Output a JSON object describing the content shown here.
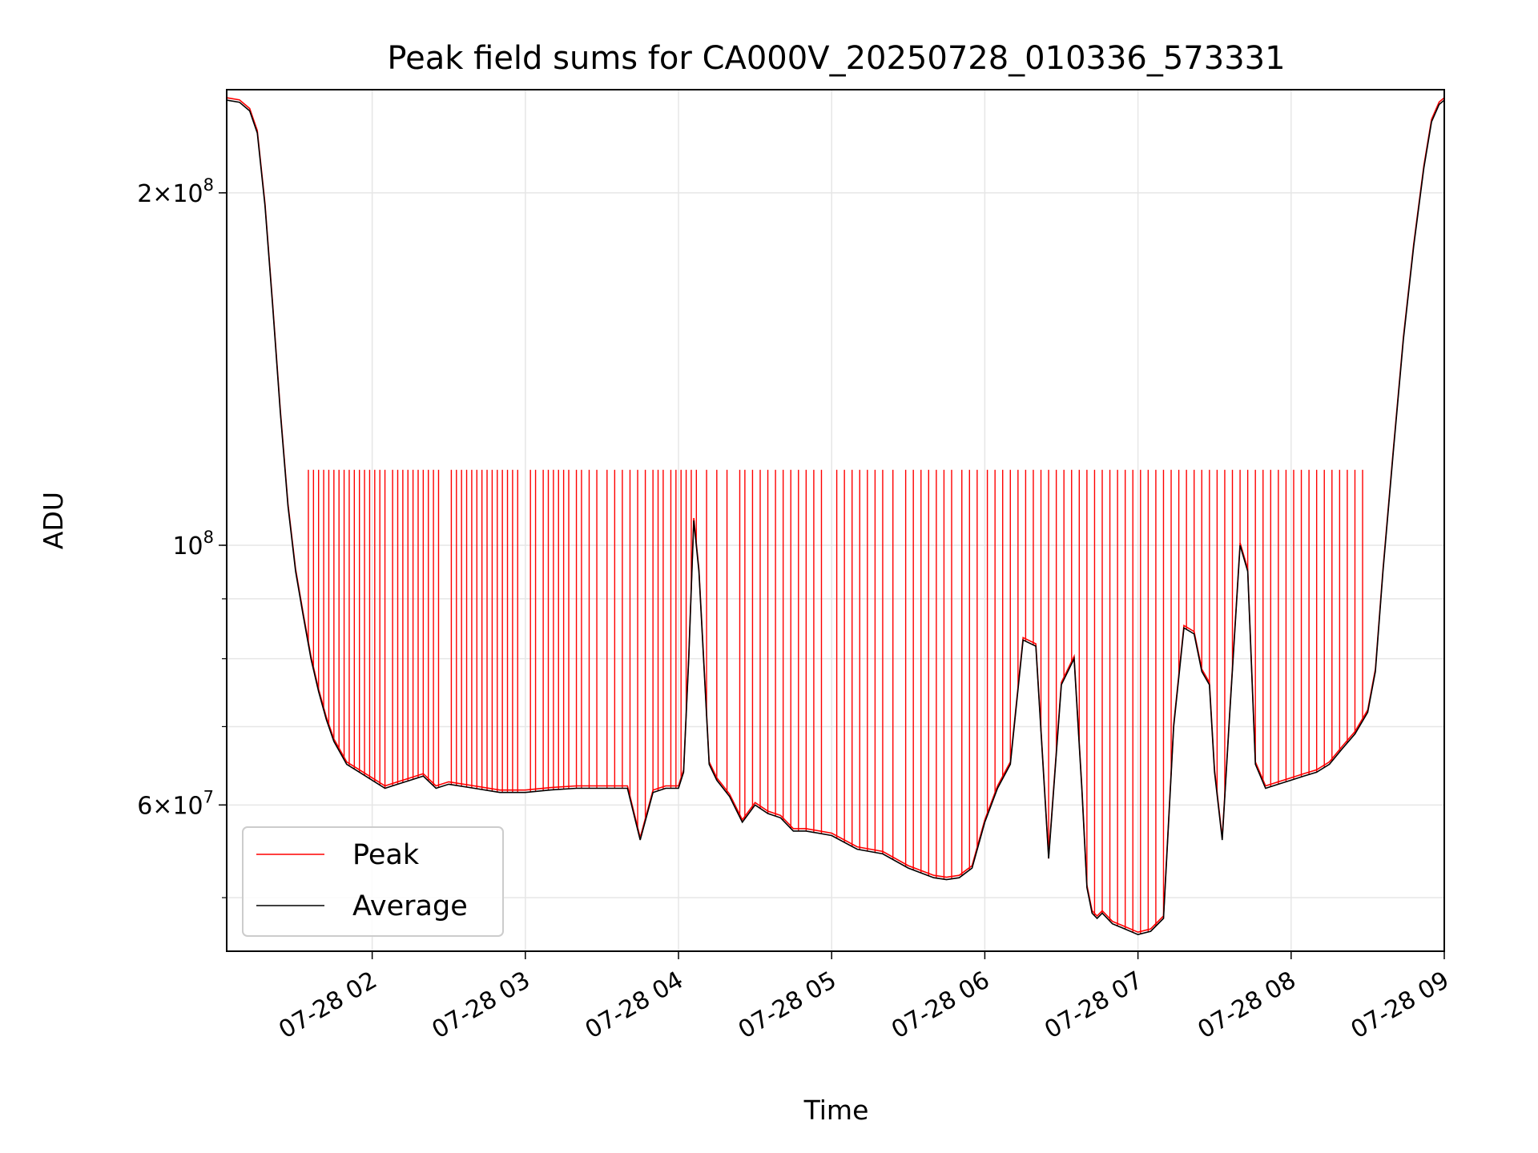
{
  "chart_data": {
    "type": "line",
    "title": "Peak field sums for CA000V_20250728_010336_573331",
    "xlabel": "Time",
    "ylabel": "ADU",
    "y_scale": "log",
    "ylim": [
      45000000,
      245000000
    ],
    "xlim": [
      "2025-07-28 01:03",
      "2025-07-28 09:00"
    ],
    "grid": true,
    "legend": "lower-left",
    "x_tick_labels": [
      "07-28 02",
      "07-28 03",
      "07-28 04",
      "07-28 05",
      "07-28 06",
      "07-28 07",
      "07-28 08",
      "07-28 09"
    ],
    "y_tick_labels": [
      {
        "value": 200000000,
        "mantissa": "2",
        "exponent": "8"
      },
      {
        "value": 100000000,
        "mantissa": "",
        "exponent": "8"
      },
      {
        "value": 60000000,
        "mantissa": "6",
        "exponent": "7"
      }
    ],
    "series": [
      {
        "name": "Peak",
        "color": "#ff0000",
        "note_peak_level": 116000000,
        "spike_times": [
          "01:35",
          "01:37",
          "01:39",
          "01:41",
          "01:43",
          "01:45",
          "01:47",
          "01:49",
          "01:51",
          "01:53",
          "01:55",
          "01:57",
          "01:59",
          "02:01",
          "02:03",
          "02:05",
          "02:08",
          "02:10",
          "02:12",
          "02:14",
          "02:16",
          "02:18",
          "02:20",
          "02:22",
          "02:24",
          "02:26",
          "02:31",
          "02:33",
          "02:35",
          "02:37",
          "02:39",
          "02:41",
          "02:43",
          "02:45",
          "02:47",
          "02:49",
          "02:51",
          "02:53",
          "02:55",
          "02:57",
          "03:02",
          "03:04",
          "03:07",
          "03:09",
          "03:11",
          "03:13",
          "03:15",
          "03:17",
          "03:20",
          "03:22",
          "03:25",
          "03:28",
          "03:32",
          "03:35",
          "03:38",
          "03:41",
          "03:44",
          "03:47",
          "03:50",
          "03:52",
          "03:54",
          "03:57",
          "03:59",
          "04:01",
          "04:03",
          "04:05",
          "04:07",
          "04:11",
          "04:15",
          "04:19",
          "04:24",
          "04:26",
          "04:29",
          "04:32",
          "04:35",
          "04:38",
          "04:41",
          "04:44",
          "04:47",
          "04:50",
          "04:53",
          "04:56",
          "05:02",
          "05:05",
          "05:08",
          "05:11",
          "05:14",
          "05:17",
          "05:20",
          "05:24",
          "05:29",
          "05:32",
          "05:35",
          "05:38",
          "05:41",
          "05:44",
          "05:47",
          "05:51",
          "05:54",
          "05:57",
          "06:01",
          "06:04",
          "06:07",
          "06:10",
          "06:13",
          "06:16",
          "06:19",
          "06:22",
          "06:25",
          "06:28",
          "06:31",
          "06:34",
          "06:37",
          "06:40",
          "06:43",
          "06:46",
          "06:49",
          "06:52",
          "06:55",
          "06:58",
          "07:01",
          "07:04",
          "07:07",
          "07:10",
          "07:13",
          "07:16",
          "07:19",
          "07:22",
          "07:25",
          "07:28",
          "07:31",
          "07:34",
          "07:37",
          "07:40",
          "07:43",
          "07:46",
          "07:49",
          "07:52",
          "07:55",
          "07:58",
          "08:01",
          "08:04",
          "08:07",
          "08:10",
          "08:13",
          "08:16",
          "08:19",
          "08:22",
          "08:25",
          "08:28"
        ]
      },
      {
        "name": "Average",
        "color": "#000000",
        "x": [
          "01:03",
          "01:08",
          "01:12",
          "01:15",
          "01:18",
          "01:21",
          "01:24",
          "01:27",
          "01:30",
          "01:33",
          "01:36",
          "01:39",
          "01:42",
          "01:45",
          "01:50",
          "01:55",
          "02:00",
          "02:05",
          "02:10",
          "02:15",
          "02:20",
          "02:25",
          "02:30",
          "02:40",
          "02:50",
          "03:00",
          "03:10",
          "03:20",
          "03:30",
          "03:40",
          "03:45",
          "03:50",
          "03:55",
          "04:00",
          "04:02",
          "04:04",
          "04:06",
          "04:08",
          "04:12",
          "04:15",
          "04:20",
          "04:25",
          "04:30",
          "04:35",
          "04:40",
          "04:45",
          "04:50",
          "05:00",
          "05:10",
          "05:20",
          "05:30",
          "05:40",
          "05:45",
          "05:50",
          "05:55",
          "06:00",
          "06:05",
          "06:10",
          "06:15",
          "06:20",
          "06:25",
          "06:30",
          "06:35",
          "06:38",
          "06:40",
          "06:42",
          "06:44",
          "06:46",
          "06:50",
          "06:55",
          "07:00",
          "07:05",
          "07:10",
          "07:14",
          "07:18",
          "07:22",
          "07:25",
          "07:28",
          "07:30",
          "07:33",
          "07:36",
          "07:40",
          "07:43",
          "07:46",
          "07:50",
          "07:55",
          "08:00",
          "08:05",
          "08:10",
          "08:15",
          "08:20",
          "08:25",
          "08:30",
          "08:33",
          "08:36",
          "08:40",
          "08:44",
          "08:48",
          "08:52",
          "08:55",
          "08:58",
          "09:00"
        ],
        "y": [
          240000000,
          239000000,
          235000000,
          225000000,
          195000000,
          160000000,
          130000000,
          108000000,
          95000000,
          87000000,
          80000000,
          75000000,
          71000000,
          68000000,
          65000000,
          64000000,
          63000000,
          62000000,
          62500000,
          63000000,
          63500000,
          62000000,
          62500000,
          62000000,
          61500000,
          61500000,
          61800000,
          62000000,
          62000000,
          62000000,
          56000000,
          61500000,
          62000000,
          62000000,
          64000000,
          80000000,
          105000000,
          95000000,
          65000000,
          63000000,
          61000000,
          58000000,
          60000000,
          59000000,
          58500000,
          57000000,
          57000000,
          56500000,
          55000000,
          54500000,
          53000000,
          52000000,
          51800000,
          52000000,
          53000000,
          58000000,
          62000000,
          65000000,
          83000000,
          82000000,
          54000000,
          76000000,
          80000000,
          62000000,
          51000000,
          48500000,
          48000000,
          48500000,
          47500000,
          47000000,
          46500000,
          46800000,
          48000000,
          70000000,
          85000000,
          84000000,
          78000000,
          76000000,
          64000000,
          56000000,
          72000000,
          100000000,
          95000000,
          65000000,
          62000000,
          62500000,
          63000000,
          63500000,
          64000000,
          65000000,
          67000000,
          69000000,
          72000000,
          78000000,
          95000000,
          120000000,
          150000000,
          180000000,
          210000000,
          230000000,
          238000000,
          240000000
        ]
      }
    ]
  }
}
